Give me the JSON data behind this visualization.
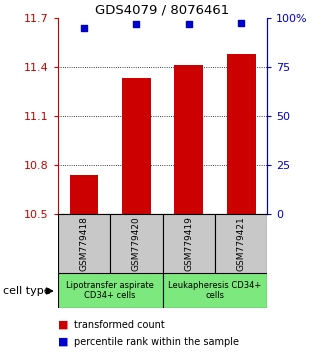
{
  "title": "GDS4079 / 8076461",
  "samples": [
    "GSM779418",
    "GSM779420",
    "GSM779419",
    "GSM779421"
  ],
  "bar_values": [
    10.74,
    11.33,
    11.41,
    11.48
  ],
  "percentile_values": [
    95,
    97,
    97,
    97.5
  ],
  "ylim_left": [
    10.5,
    11.7
  ],
  "ylim_right": [
    0,
    100
  ],
  "yticks_left": [
    10.5,
    10.8,
    11.1,
    11.4,
    11.7
  ],
  "ytick_labels_left": [
    "10.5",
    "10.8",
    "11.1",
    "11.4",
    "11.7"
  ],
  "yticks_right": [
    0,
    25,
    50,
    75,
    100
  ],
  "ytick_labels_right": [
    "0",
    "25",
    "50",
    "75",
    "100%"
  ],
  "bar_color": "#cc0000",
  "dot_color": "#0000cc",
  "bar_bottom": 10.5,
  "group1_label": "Lipotransfer aspirate\nCD34+ cells",
  "group2_label": "Leukapheresis CD34+\ncells",
  "group1_color": "#c8c8c8",
  "group2_color": "#7de87d",
  "cell_type_label": "cell type",
  "legend_red_label": "transformed count",
  "legend_blue_label": "percentile rank within the sample",
  "bar_width": 0.55
}
